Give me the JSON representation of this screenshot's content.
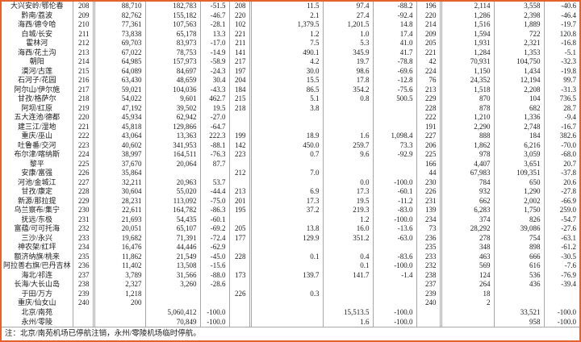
{
  "colors": {
    "frame": "#e4622d",
    "grid": "#a8a8a8",
    "text": "#1c1c1c",
    "background": "#ffffff"
  },
  "note": "注：北京/南苑机场已停航注销，永州/零陵机场临时停航。",
  "table": {
    "column_keys": [
      "airport_name",
      "pax_rank",
      "pax_current",
      "pax_previous",
      "pax_growth_pct",
      "cargo_rank",
      "cargo_current",
      "cargo_previous",
      "cargo_growth_pct",
      "movements_rank",
      "movements_current",
      "movements_previous",
      "movements_growth_pct"
    ],
    "rows": [
      [
        "大兴安岭/鄂伦春",
        "208",
        "88,710",
        "182,783",
        "-51.5",
        "208",
        "11.5",
        "97.4",
        "-88.2",
        "196",
        "2,114",
        "3,558",
        "-40.6"
      ],
      [
        "黔南/荔波",
        "209",
        "82,762",
        "155,182",
        "-46.7",
        "220",
        "2.1",
        "27.4",
        "-92.4",
        "220",
        "1,286",
        "2,398",
        "-46.4"
      ],
      [
        "海西/德令哈",
        "210",
        "77,361",
        "107,563",
        "-28.1",
        "102",
        "1,379.5",
        "1,201.5",
        "14.8",
        "214",
        "1,516",
        "1,889",
        "-19.7"
      ],
      [
        "白城/长安",
        "211",
        "73,838",
        "65,178",
        "13.3",
        "221",
        "1.2",
        "1.0",
        "17.4",
        "209",
        "1,594",
        "722",
        "120.8"
      ],
      [
        "霍林河",
        "212",
        "69,703",
        "83,973",
        "-17.0",
        "211",
        "7.5",
        "5.3",
        "41.0",
        "205",
        "1,931",
        "2,321",
        "-16.8"
      ],
      [
        "海西/花土沟",
        "213",
        "67,022",
        "78,753",
        "-14.9",
        "141",
        "490.1",
        "345.9",
        "41.7",
        "221",
        "1,284",
        "1,353",
        "-5.1"
      ],
      [
        "朝阳",
        "214",
        "64,985",
        "157,973",
        "-58.9",
        "217",
        "4.2",
        "19.7",
        "-78.8",
        "42",
        "70,931",
        "104,750",
        "-32.3"
      ],
      [
        "漠河/古莲",
        "215",
        "64,089",
        "84,697",
        "-24.3",
        "197",
        "30.0",
        "98.6",
        "-69.6",
        "224",
        "1,150",
        "1,434",
        "-19.8"
      ],
      [
        "石河子/花园",
        "216",
        "63,430",
        "48,659",
        "30.4",
        "204",
        "15.5",
        "17.8",
        "-12.8",
        "76",
        "24,352",
        "12,194",
        "99.7"
      ],
      [
        "阿尔山/伊尔施",
        "217",
        "59,021",
        "104,036",
        "-43.3",
        "184",
        "86.5",
        "354.2",
        "-75.6",
        "213",
        "1,518",
        "2,208",
        "-31.3"
      ],
      [
        "甘孜/格萨尔",
        "218",
        "54,022",
        "9,601",
        "462.7",
        "215",
        "5.1",
        "0.8",
        "500.5",
        "229",
        "870",
        "104",
        "736.5"
      ],
      [
        "阿坝/红原",
        "219",
        "47,192",
        "39,502",
        "19.5",
        "218",
        "3.8",
        "",
        "",
        "228",
        "878",
        "682",
        "28.7"
      ],
      [
        "五大连池/德都",
        "220",
        "45,934",
        "62,942",
        "-27.0",
        "",
        "",
        "",
        "",
        "222",
        "1,210",
        "1,336",
        "-9.4"
      ],
      [
        "建三江/湿地",
        "221",
        "45,818",
        "129,866",
        "-64.7",
        "",
        "",
        "",
        "",
        "191",
        "2,290",
        "2,748",
        "-16.7"
      ],
      [
        "重庆/巫山",
        "222",
        "43,064",
        "13,363",
        "222.3",
        "199",
        "18.9",
        "1.6",
        "1,098.4",
        "227",
        "888",
        "184",
        "382.6"
      ],
      [
        "吐鲁番/交河",
        "223",
        "40,602",
        "341,953",
        "-88.1",
        "142",
        "450.0",
        "259.7",
        "73.3",
        "206",
        "1,862",
        "6,216",
        "-70.0"
      ],
      [
        "布尔津/喀纳斯",
        "224",
        "38,997",
        "164,511",
        "-76.3",
        "223",
        "0.7",
        "9.6",
        "-92.9",
        "225",
        "978",
        "3,059",
        "-68.0"
      ],
      [
        "黎平",
        "225",
        "37,670",
        "20,064",
        "87.7",
        "",
        "",
        "",
        "",
        "166",
        "4,407",
        "3,651",
        "20.7"
      ],
      [
        "安康/富强",
        "226",
        "35,864",
        "",
        "",
        "212",
        "7.0",
        "",
        "",
        "44",
        "67,983",
        "109,351",
        "-37.8"
      ],
      [
        "河池/金城江",
        "227",
        "32,211",
        "20,963",
        "53.7",
        "",
        "",
        "0.0",
        "-100.0",
        "230",
        "784",
        "650",
        "20.6"
      ],
      [
        "甘孜/康定",
        "228",
        "30,604",
        "55,020",
        "-44.4",
        "213",
        "6.9",
        "17.3",
        "-60.1",
        "226",
        "932",
        "1,290",
        "-27.8"
      ],
      [
        "新源/那拉提",
        "229",
        "28,231",
        "113,092",
        "-75.0",
        "201",
        "17.3",
        "19.5",
        "-11.2",
        "231",
        "662",
        "2,002",
        "-66.9"
      ],
      [
        "乌兰察布/集宁",
        "230",
        "22,611",
        "164,782",
        "-86.3",
        "195",
        "37.2",
        "219.3",
        "-83.0",
        "139",
        "6,283",
        "1,750",
        "259.0"
      ],
      [
        "抚远/东极",
        "231",
        "21,693",
        "54,435",
        "-60.1",
        "",
        "",
        "1.2",
        "-100.0",
        "234",
        "374",
        "826",
        "-54.7"
      ],
      [
        "富蕴/可可托海",
        "232",
        "20,051",
        "65,107",
        "-69.2",
        "205",
        "13.8",
        "16.0",
        "-13.6",
        "73",
        "28,292",
        "39,086",
        "-27.6"
      ],
      [
        "三沙/永兴",
        "233",
        "19,682",
        "71,391",
        "-72.4",
        "177",
        "129.9",
        "351.2",
        "-63.0",
        "236",
        "278",
        "754",
        "-63.1"
      ],
      [
        "神农架/红坪",
        "234",
        "16,476",
        "44,446",
        "-62.9",
        "",
        "",
        "",
        "",
        "235",
        "348",
        "898",
        "-61.2"
      ],
      [
        "额济纳旗/桃来",
        "235",
        "11,862",
        "21,549",
        "-45.0",
        "228",
        "0.1",
        "0.4",
        "-83.6",
        "233",
        "463",
        "666",
        "-30.5"
      ],
      [
        "阿拉善右旗/巴丹吉林",
        "236",
        "11,402",
        "13,508",
        "-15.6",
        "",
        "",
        "0.1",
        "-100.0",
        "232",
        "569",
        "616",
        "-7.6"
      ],
      [
        "海北/祁连",
        "237",
        "3,789",
        "31,566",
        "-88.0",
        "173",
        "139.7",
        "141.7",
        "-1.4",
        "238",
        "124",
        "536",
        "-76.9"
      ],
      [
        "长海/大长山岛",
        "238",
        "2,327",
        "3,260",
        "-28.6",
        "",
        "",
        "",
        "",
        "237",
        "264",
        "436",
        "-39.4"
      ],
      [
        "于田/万方",
        "239",
        "1,218",
        "",
        "",
        "226",
        "0.3",
        "",
        "",
        "239",
        "18",
        "",
        ""
      ],
      [
        "重庆/仙女山",
        "240",
        "200",
        "",
        "",
        "",
        "",
        "",
        "",
        "240",
        "2",
        "",
        ""
      ],
      [
        "北京/南苑",
        "",
        "",
        "5,060,412",
        "-100.0",
        "",
        "",
        "15,513.5",
        "-100.0",
        "",
        "",
        "33,521",
        "-100.0"
      ],
      [
        "永州/零陵",
        "",
        "",
        "70,849",
        "-100.0",
        "",
        "",
        "1.6",
        "-100.0",
        "",
        "",
        "958",
        "-100.0"
      ]
    ]
  }
}
